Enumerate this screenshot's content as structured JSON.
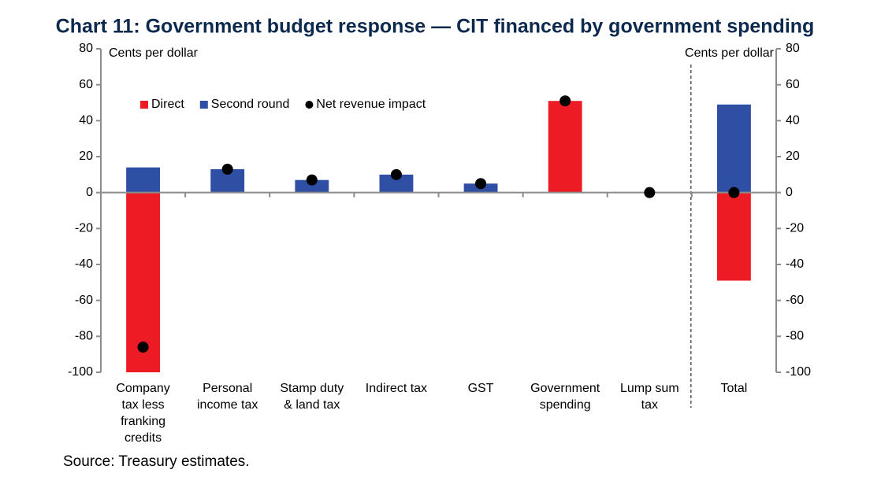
{
  "chart_data": {
    "type": "bar",
    "title": "Chart 11: Government budget response — CIT financed by government spending",
    "y_label": "Cents per dollar",
    "y2_label": "Cents per dollar",
    "source": "Source: Treasury estimates.",
    "categories": [
      "Company tax less franking credits",
      "Personal income tax",
      "Stamp duty & land tax",
      "Indirect tax",
      "GST",
      "Government spending",
      "Lump sum tax",
      "Total"
    ],
    "series": [
      {
        "name": "Direct",
        "color": "#ed1c24",
        "values": [
          -100,
          0,
          0,
          0,
          0,
          51,
          0,
          -49
        ]
      },
      {
        "name": "Second round",
        "color": "#2e4fa3",
        "values": [
          14,
          13,
          7,
          10,
          5,
          0,
          0,
          49
        ]
      },
      {
        "name": "Net revenue impact",
        "color": "#000000",
        "type": "dot",
        "values": [
          -86,
          13,
          7,
          10,
          5,
          51,
          0,
          0
        ]
      }
    ],
    "ylim": [
      -100,
      80
    ],
    "yticks": [
      -100,
      -80,
      -60,
      -40,
      -20,
      0,
      20,
      40,
      60,
      80
    ],
    "y2lim": [
      -100,
      80
    ],
    "y2ticks": [
      -100,
      -80,
      -60,
      -40,
      -20,
      0,
      20,
      40,
      60,
      80
    ],
    "stacked": true,
    "grid": false,
    "legend": "top-left"
  }
}
